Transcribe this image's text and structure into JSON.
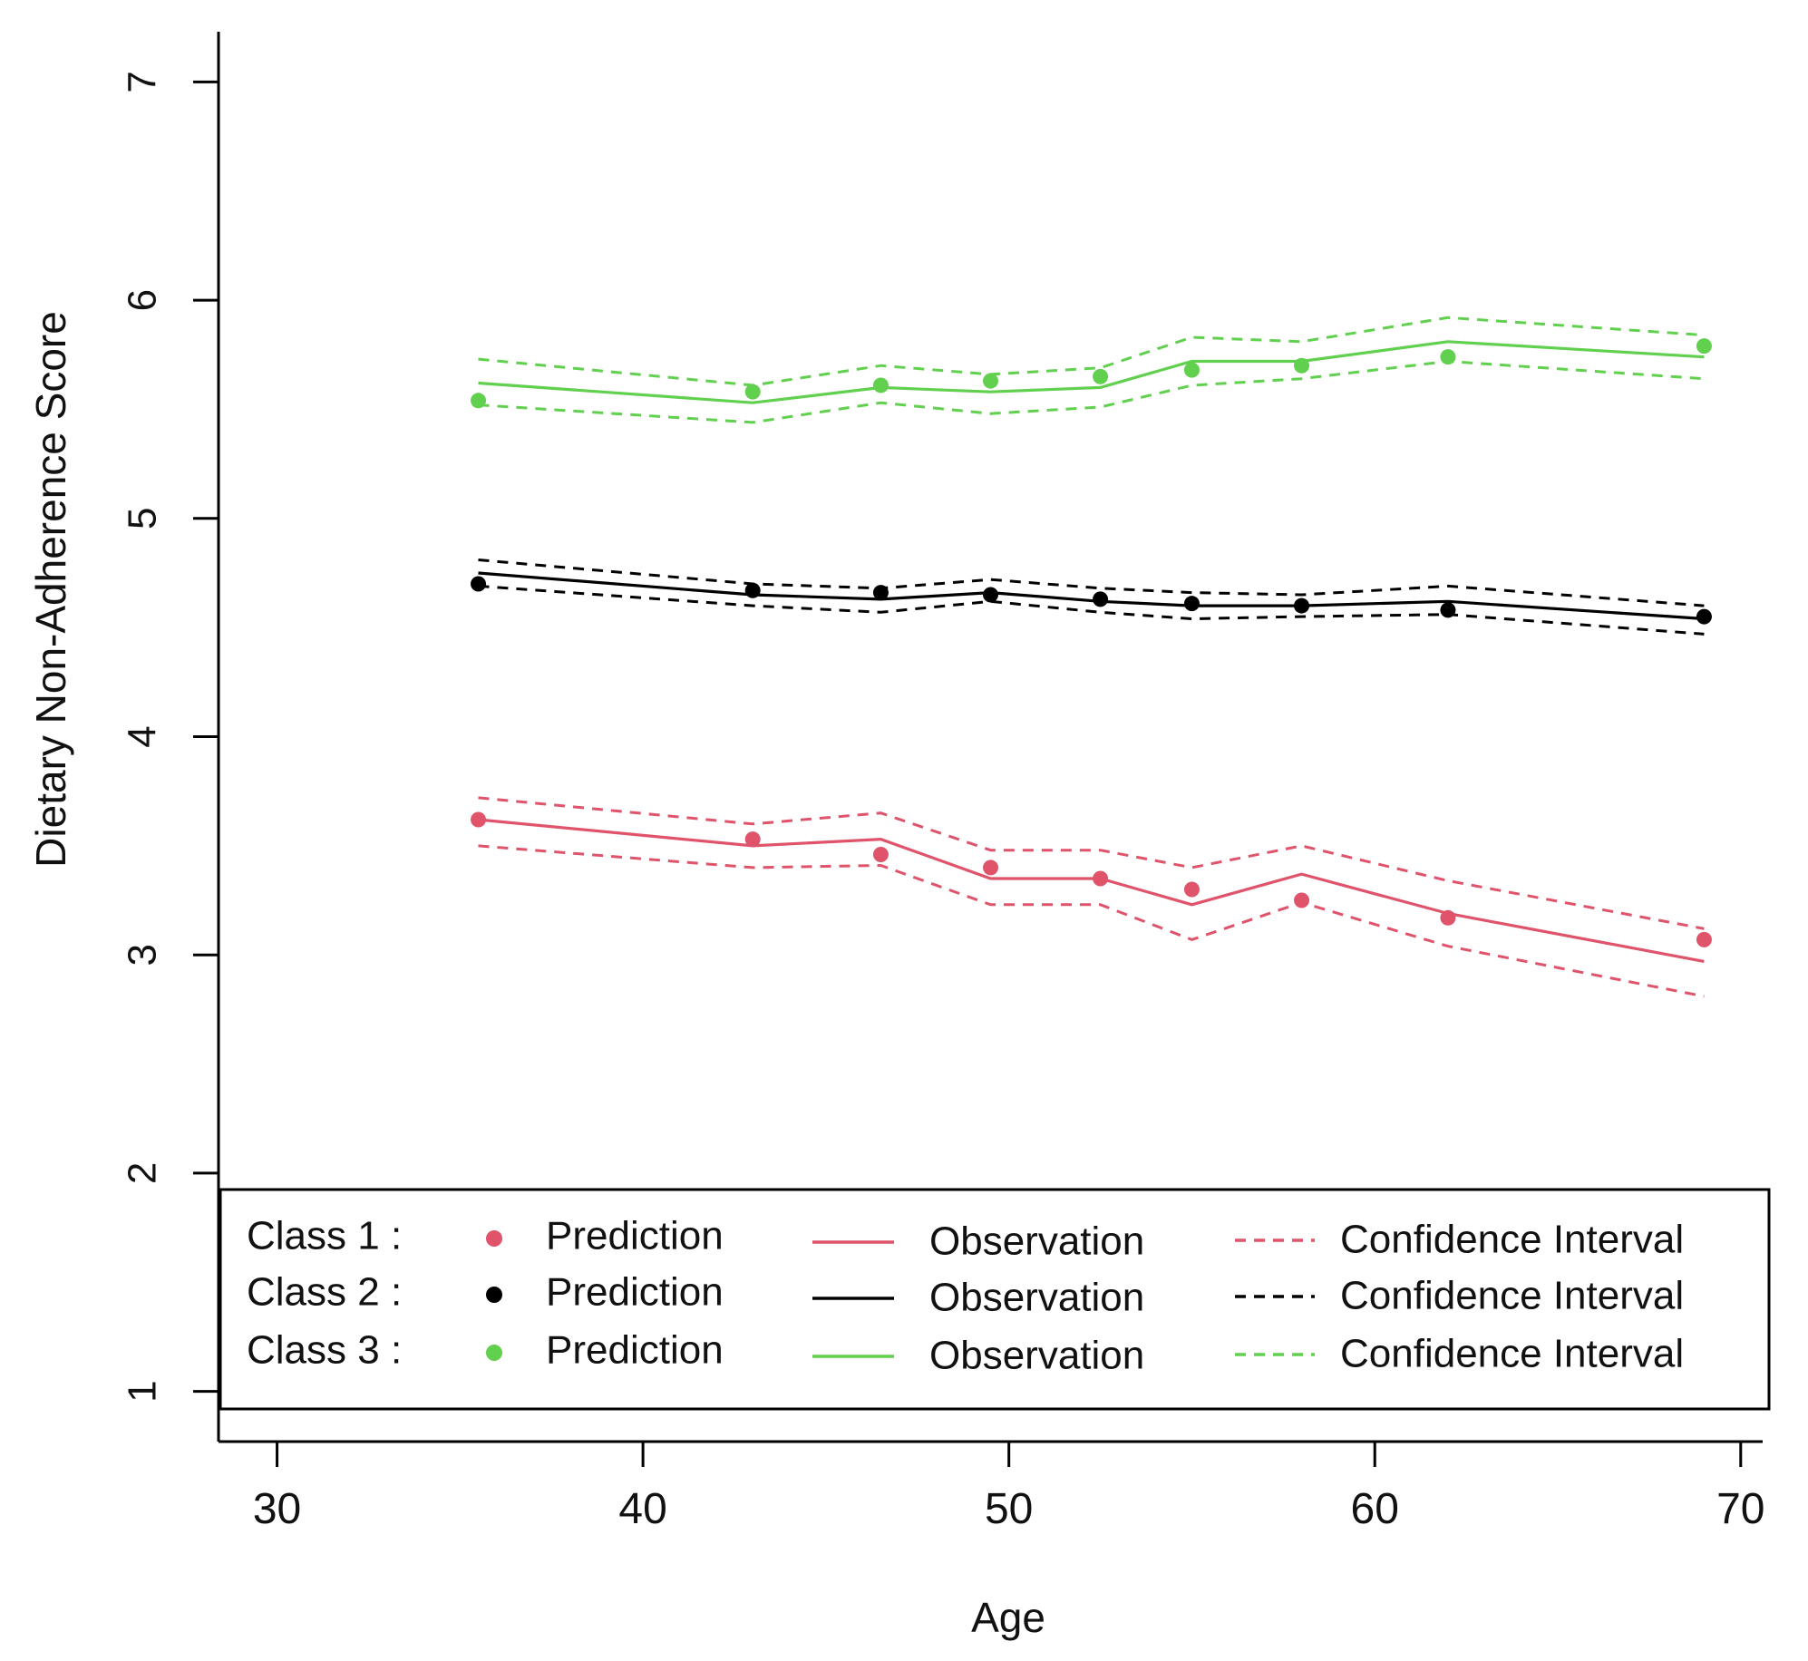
{
  "chart_data": {
    "type": "line",
    "title": "",
    "xlabel": "Age",
    "ylabel": "Dietary Non-Adherence Score",
    "xlim": [
      28.4,
      70.6
    ],
    "ylim": [
      0.77,
      7.23
    ],
    "xticks": [
      30,
      40,
      50,
      60,
      70
    ],
    "yticks": [
      1,
      2,
      3,
      4,
      5,
      6,
      7
    ],
    "grid": false,
    "legend_position": "bottom",
    "ages": [
      35.5,
      43,
      46.5,
      49.5,
      52.5,
      55,
      58,
      62,
      69
    ],
    "series": [
      {
        "name": "Class 1",
        "color": "#df536b",
        "prediction": [
          3.62,
          3.53,
          3.46,
          3.4,
          3.35,
          3.3,
          3.25,
          3.17,
          3.07
        ],
        "observation": [
          3.62,
          3.5,
          3.53,
          3.35,
          3.35,
          3.23,
          3.37,
          3.19,
          2.97
        ],
        "ci_upper": [
          3.72,
          3.6,
          3.65,
          3.48,
          3.48,
          3.4,
          3.5,
          3.34,
          3.12
        ],
        "ci_lower": [
          3.5,
          3.4,
          3.41,
          3.23,
          3.23,
          3.07,
          3.24,
          3.04,
          2.81
        ]
      },
      {
        "name": "Class 2",
        "color": "#000000",
        "prediction": [
          4.7,
          4.67,
          4.66,
          4.65,
          4.63,
          4.61,
          4.6,
          4.58,
          4.55
        ],
        "observation": [
          4.75,
          4.65,
          4.63,
          4.66,
          4.62,
          4.6,
          4.6,
          4.62,
          4.54
        ],
        "ci_upper": [
          4.81,
          4.7,
          4.68,
          4.72,
          4.68,
          4.66,
          4.65,
          4.69,
          4.6
        ],
        "ci_lower": [
          4.69,
          4.6,
          4.57,
          4.62,
          4.57,
          4.54,
          4.55,
          4.56,
          4.47
        ]
      },
      {
        "name": "Class 3",
        "color": "#61d04f",
        "prediction": [
          5.54,
          5.58,
          5.61,
          5.63,
          5.65,
          5.68,
          5.7,
          5.74,
          5.79
        ],
        "observation": [
          5.62,
          5.53,
          5.6,
          5.58,
          5.6,
          5.72,
          5.72,
          5.81,
          5.74
        ],
        "ci_upper": [
          5.73,
          5.61,
          5.7,
          5.66,
          5.69,
          5.83,
          5.81,
          5.92,
          5.84
        ],
        "ci_lower": [
          5.52,
          5.44,
          5.53,
          5.48,
          5.51,
          5.61,
          5.64,
          5.72,
          5.64
        ]
      }
    ],
    "legend": {
      "rows": [
        {
          "class": "Class 1 :",
          "color": "#df536b",
          "dashed": true
        },
        {
          "class": "Class 2 :",
          "color": "#000000",
          "dashed": true
        },
        {
          "class": "Class 3 :",
          "color": "#61d04f",
          "dashed": true
        }
      ],
      "prediction_label": "Prediction",
      "observation_label": "Observation",
      "ci_label": "Confidence Interval"
    }
  }
}
